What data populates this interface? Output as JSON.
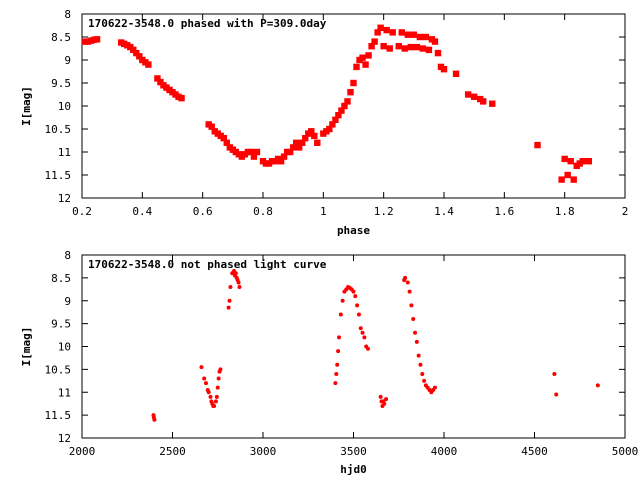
{
  "chart_data": [
    {
      "type": "scatter",
      "title": "170622-3548.0 phased with P=309.0day",
      "xlabel": "phase",
      "ylabel": "I[mag]",
      "xlim": [
        0.2,
        2.0
      ],
      "ylim": [
        12,
        8
      ],
      "y_inverted": true,
      "grid": false,
      "marker_color": "#ff0000",
      "x_ticks": [
        "0.2",
        "0.4",
        "0.6",
        "0.8",
        "1",
        "1.2",
        "1.4",
        "1.6",
        "1.8",
        "2"
      ],
      "y_ticks": [
        "8",
        "8.5",
        "9",
        "9.5",
        "10",
        "10.5",
        "11",
        "11.5",
        "12"
      ],
      "series": [
        {
          "x": [
            0.21,
            0.22,
            0.23,
            0.24,
            0.25,
            0.33,
            0.34,
            0.35,
            0.36,
            0.37,
            0.38,
            0.39,
            0.4,
            0.41,
            0.42,
            0.45,
            0.46,
            0.47,
            0.48,
            0.49,
            0.5,
            0.51,
            0.52,
            0.53,
            0.62,
            0.63,
            0.64,
            0.65,
            0.66,
            0.67,
            0.68,
            0.69,
            0.7,
            0.71,
            0.72,
            0.73,
            0.74,
            0.75,
            0.76,
            0.77,
            0.78,
            0.8,
            0.81,
            0.82,
            0.83,
            0.84,
            0.85,
            0.86,
            0.87,
            0.88,
            0.89,
            0.9,
            0.91,
            0.92,
            0.93,
            0.94,
            0.95,
            0.96,
            0.97,
            0.98,
            1.0,
            1.01,
            1.02,
            1.03,
            1.04,
            1.05,
            1.06,
            1.07,
            1.08,
            1.09,
            1.1,
            1.11,
            1.12,
            1.13,
            1.14,
            1.15,
            1.16,
            1.17,
            1.18,
            1.19,
            1.2,
            1.21,
            1.22,
            1.23,
            1.25,
            1.26,
            1.27,
            1.28,
            1.29,
            1.3,
            1.31,
            1.32,
            1.33,
            1.34,
            1.35,
            1.36,
            1.37,
            1.38,
            1.39,
            1.4,
            1.44,
            1.48,
            1.5,
            1.52,
            1.53,
            1.56,
            1.71,
            1.79,
            1.8,
            1.81,
            1.82,
            1.83,
            1.84,
            1.85,
            1.86,
            1.88
          ],
          "y": [
            8.6,
            8.6,
            8.58,
            8.56,
            8.55,
            8.62,
            8.65,
            8.68,
            8.72,
            8.78,
            8.85,
            8.92,
            9.0,
            9.05,
            9.1,
            9.4,
            9.48,
            9.55,
            9.6,
            9.65,
            9.7,
            9.75,
            9.8,
            9.83,
            10.4,
            10.45,
            10.55,
            10.6,
            10.65,
            10.7,
            10.8,
            10.9,
            10.95,
            11.0,
            11.05,
            11.1,
            11.05,
            11.0,
            11.0,
            11.1,
            11.0,
            11.2,
            11.25,
            11.25,
            11.2,
            11.2,
            11.15,
            11.2,
            11.1,
            11.0,
            11.0,
            10.9,
            10.8,
            10.9,
            10.8,
            10.7,
            10.6,
            10.55,
            10.65,
            10.8,
            10.6,
            10.55,
            10.5,
            10.4,
            10.3,
            10.2,
            10.1,
            10.0,
            9.9,
            9.7,
            9.5,
            9.15,
            9.0,
            8.95,
            9.1,
            8.9,
            8.7,
            8.6,
            8.4,
            8.3,
            8.7,
            8.35,
            8.75,
            8.4,
            8.7,
            8.4,
            8.75,
            8.45,
            8.72,
            8.45,
            8.72,
            8.5,
            8.75,
            8.5,
            8.78,
            8.55,
            8.6,
            8.85,
            9.15,
            9.2,
            9.3,
            9.75,
            9.8,
            9.85,
            9.9,
            9.95,
            10.85,
            11.6,
            11.15,
            11.5,
            11.2,
            11.6,
            11.3,
            11.25,
            11.2,
            11.2
          ]
        }
      ]
    },
    {
      "type": "scatter",
      "title": "170622-3548.0 not phased light curve",
      "xlabel": "hjd0",
      "ylabel": "I[mag]",
      "xlim": [
        2000,
        5000
      ],
      "ylim": [
        12,
        8
      ],
      "y_inverted": true,
      "grid": false,
      "marker_color": "#ff0000",
      "x_ticks": [
        "2000",
        "2500",
        "3000",
        "3500",
        "4000",
        "4500",
        "5000"
      ],
      "y_ticks": [
        "8",
        "8.5",
        "9",
        "9.5",
        "10",
        "10.5",
        "11",
        "11.5",
        "12"
      ],
      "series": [
        {
          "x": [
            2395,
            2397,
            2400,
            2660,
            2675,
            2685,
            2695,
            2700,
            2710,
            2715,
            2720,
            2725,
            2730,
            2740,
            2745,
            2750,
            2755,
            2760,
            2765,
            2810,
            2815,
            2820,
            2830,
            2840,
            2845,
            2850,
            2855,
            2860,
            2865,
            2870,
            3400,
            3405,
            3410,
            3415,
            3420,
            3430,
            3440,
            3450,
            3460,
            3470,
            3480,
            3490,
            3500,
            3510,
            3520,
            3530,
            3540,
            3550,
            3560,
            3570,
            3580,
            3650,
            3655,
            3660,
            3665,
            3670,
            3680,
            3780,
            3785,
            3800,
            3810,
            3820,
            3830,
            3840,
            3850,
            3860,
            3870,
            3880,
            3890,
            3900,
            3910,
            3920,
            3930,
            3940,
            3950,
            4610,
            4620,
            4850
          ],
          "y": [
            11.5,
            11.55,
            11.6,
            10.45,
            10.7,
            10.8,
            10.95,
            11.0,
            11.1,
            11.2,
            11.25,
            11.3,
            11.3,
            11.2,
            11.1,
            10.9,
            10.7,
            10.55,
            10.5,
            9.15,
            9.0,
            8.7,
            8.4,
            8.35,
            8.45,
            8.4,
            8.5,
            8.55,
            8.6,
            8.7,
            10.8,
            10.6,
            10.4,
            10.1,
            9.8,
            9.3,
            9.0,
            8.8,
            8.75,
            8.7,
            8.72,
            8.75,
            8.8,
            8.9,
            9.1,
            9.3,
            9.6,
            9.7,
            9.8,
            10.0,
            10.05,
            11.1,
            11.2,
            11.3,
            11.2,
            11.25,
            11.15,
            8.55,
            8.5,
            8.6,
            8.8,
            9.1,
            9.4,
            9.7,
            9.9,
            10.2,
            10.4,
            10.6,
            10.75,
            10.85,
            10.9,
            10.95,
            11.0,
            10.95,
            10.9,
            10.6,
            11.05,
            10.85
          ]
        }
      ]
    }
  ]
}
